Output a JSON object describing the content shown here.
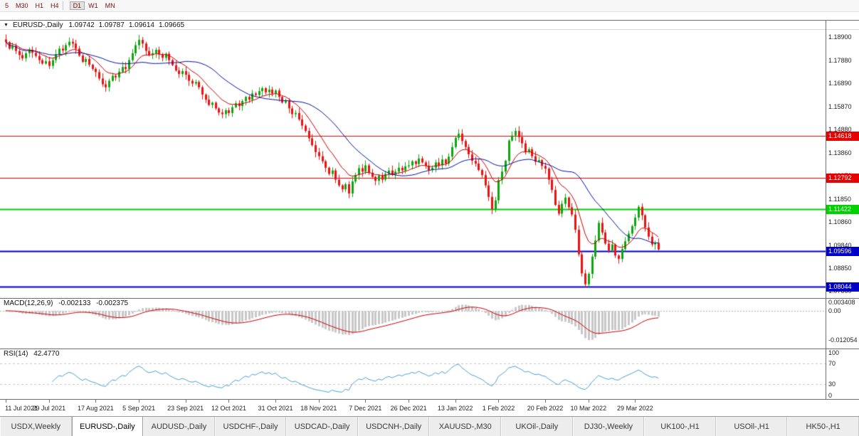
{
  "toolbar": {
    "timeframes": [
      {
        "label": "5",
        "active": false
      },
      {
        "label": "M30",
        "active": false
      },
      {
        "label": "H1",
        "active": false
      },
      {
        "label": "H4",
        "active": false
      },
      {
        "label": "D1",
        "active": true
      },
      {
        "label": "W1",
        "active": false
      },
      {
        "label": "MN",
        "active": false
      }
    ]
  },
  "chart_header": {
    "menu_icon": "▼",
    "symbol": "EURUSD-,Daily",
    "open": "1.09742",
    "high": "1.09787",
    "low": "1.09614",
    "close": "1.09665"
  },
  "price_axis": {
    "labels": [
      "1.18900",
      "1.17880",
      "1.16890",
      "1.15870",
      "1.14880",
      "1.13860",
      "1.12870",
      "1.11850",
      "1.10860",
      "1.09840",
      "1.08850",
      "1.07860"
    ]
  },
  "levels": [
    {
      "label": "1.14618",
      "value": 1.14618,
      "color": "#e60000",
      "width": 1
    },
    {
      "label": "1.12792",
      "value": 1.12792,
      "color": "#e60000",
      "width": 1
    },
    {
      "label": "1.11422",
      "value": 1.11422,
      "color": "#00d200",
      "width": 2
    },
    {
      "label": "1.09596",
      "value": 1.09596,
      "color": "#0000c8",
      "width": 2
    },
    {
      "label": "1.08044",
      "value": 1.08044,
      "color": "#0000c8",
      "width": 2
    }
  ],
  "macd": {
    "name": "MACD(12,26,9)",
    "value_main": "-0.002133",
    "value_signal": "-0.002375",
    "axis_labels": [
      {
        "text": "0.003408",
        "value": 0.003408
      },
      {
        "text": "0.00",
        "value": 0
      },
      {
        "text": "-0.012054",
        "value": -0.012054
      }
    ]
  },
  "rsi": {
    "name": "RSI(14)",
    "value": "42.4770",
    "axis_labels": [
      {
        "text": "100",
        "value": 100
      },
      {
        "text": "70",
        "value": 70
      },
      {
        "text": "30",
        "value": 30
      },
      {
        "text": "0",
        "value": 0
      }
    ],
    "levels": [
      70,
      30
    ]
  },
  "date_axis": [
    {
      "label": "11 Jul 2021",
      "i": 0
    },
    {
      "label": "29 Jul 2021",
      "i": 13
    },
    {
      "label": "17 Aug 2021",
      "i": 27
    },
    {
      "label": "5 Sep 2021",
      "i": 40
    },
    {
      "label": "23 Sep 2021",
      "i": 54
    },
    {
      "label": "12 Oct 2021",
      "i": 67
    },
    {
      "label": "31 Oct 2021",
      "i": 81
    },
    {
      "label": "18 Nov 2021",
      "i": 94
    },
    {
      "label": "7 Dec 2021",
      "i": 108
    },
    {
      "label": "26 Dec 2021",
      "i": 121
    },
    {
      "label": "13 Jan 2022",
      "i": 135
    },
    {
      "label": "1 Feb 2022",
      "i": 148
    },
    {
      "label": "20 Feb 2022",
      "i": 162
    },
    {
      "label": "10 Mar 2022",
      "i": 175
    },
    {
      "label": "29 Mar 2022",
      "i": 189
    }
  ],
  "tabs": [
    {
      "label": "USDX,Weekly",
      "active": false
    },
    {
      "label": "EURUSD-,Daily",
      "active": true
    },
    {
      "label": "AUDUSD-,Daily",
      "active": false
    },
    {
      "label": "USDCHF-,Daily",
      "active": false
    },
    {
      "label": "USDCAD-,Daily",
      "active": false
    },
    {
      "label": "USDCNH-,Daily",
      "active": false
    },
    {
      "label": "XAUUSD-,M30",
      "active": false
    },
    {
      "label": "UKOil-,Daily",
      "active": false
    },
    {
      "label": "DJ30-,Weekly",
      "active": false
    },
    {
      "label": "UK100-,H1",
      "active": false
    },
    {
      "label": "USOil-,H1",
      "active": false
    },
    {
      "label": "HK50-,H1",
      "active": false
    }
  ],
  "chart_data": {
    "type": "candlestick",
    "symbol": "EURUSD-",
    "timeframe": "Daily",
    "quote": {
      "open": 1.09742,
      "high": 1.09787,
      "low": 1.09614,
      "close": 1.09665
    },
    "price_range": [
      1.0755,
      1.1965
    ],
    "macd_range": [
      -0.0155,
      0.0052
    ],
    "first_open": 1.188,
    "closes": [
      1.1868,
      1.184,
      1.1852,
      1.183,
      1.1812,
      1.1798,
      1.182,
      1.1835,
      1.1822,
      1.1808,
      1.179,
      1.1775,
      1.1785,
      1.1765,
      1.179,
      1.1815,
      1.184,
      1.1832,
      1.1855,
      1.187,
      1.1862,
      1.184,
      1.181,
      1.1782,
      1.1795,
      1.177,
      1.1752,
      1.1738,
      1.171,
      1.1685,
      1.1672,
      1.17,
      1.1722,
      1.1715,
      1.174,
      1.176,
      1.1752,
      1.179,
      1.182,
      1.1855,
      1.1878,
      1.1862,
      1.183,
      1.1812,
      1.182,
      1.1835,
      1.1815,
      1.18,
      1.1818,
      1.179,
      1.1768,
      1.1745,
      1.173,
      1.1742,
      1.1726,
      1.17,
      1.1688,
      1.1695,
      1.1672,
      1.164,
      1.1618,
      1.1595,
      1.1605,
      1.158,
      1.1562,
      1.1555,
      1.1572,
      1.156,
      1.1585,
      1.1602,
      1.159,
      1.1612,
      1.163,
      1.1618,
      1.1645,
      1.1638,
      1.1655,
      1.1668,
      1.165,
      1.1662,
      1.1645,
      1.1658,
      1.163,
      1.1605,
      1.1612,
      1.158,
      1.1555,
      1.156,
      1.1532,
      1.1505,
      1.1482,
      1.145,
      1.142,
      1.139,
      1.1372,
      1.135,
      1.1322,
      1.1295,
      1.131,
      1.127,
      1.1245,
      1.1228,
      1.125,
      1.121,
      1.1262,
      1.129,
      1.132,
      1.1305,
      1.1332,
      1.13,
      1.1282,
      1.1265,
      1.1288,
      1.127,
      1.1295,
      1.131,
      1.1292,
      1.1305,
      1.1322,
      1.131,
      1.1328,
      1.1332,
      1.135,
      1.1338,
      1.1362,
      1.1345,
      1.133,
      1.1312,
      1.1322,
      1.1345,
      1.1332,
      1.1358,
      1.134,
      1.137,
      1.1412,
      1.1452,
      1.147,
      1.1438,
      1.1412,
      1.138,
      1.1352,
      1.134,
      1.1312,
      1.129,
      1.1245,
      1.1195,
      1.1142,
      1.118,
      1.1268,
      1.1305,
      1.1352,
      1.144,
      1.1462,
      1.1482,
      1.1455,
      1.1428,
      1.139,
      1.1402,
      1.1372,
      1.1348,
      1.1355,
      1.133,
      1.1318,
      1.127,
      1.1225,
      1.116,
      1.1122,
      1.1165,
      1.1192,
      1.115,
      1.1118,
      1.1052,
      1.0945,
      1.0862,
      1.0815,
      1.086,
      1.0935,
      1.1005,
      1.1082,
      1.104,
      1.0992,
      1.0962,
      1.0988,
      1.094,
      1.0925,
      1.0968,
      1.1002,
      1.1035,
      1.1068,
      1.1105,
      1.1152,
      1.1115,
      1.1062,
      1.1022,
      1.0988,
      1.0995,
      1.0966
    ],
    "colors": {
      "up": "#0fa50f",
      "down": "#ee1111",
      "ma_fast": "#c80000",
      "ma_slow": "#00149c",
      "macd_hist": "#c8c8c8",
      "macd_signal": "#cc0000",
      "rsi_line": "#4aa0d8",
      "level_dash": "#c8c8c8"
    }
  }
}
